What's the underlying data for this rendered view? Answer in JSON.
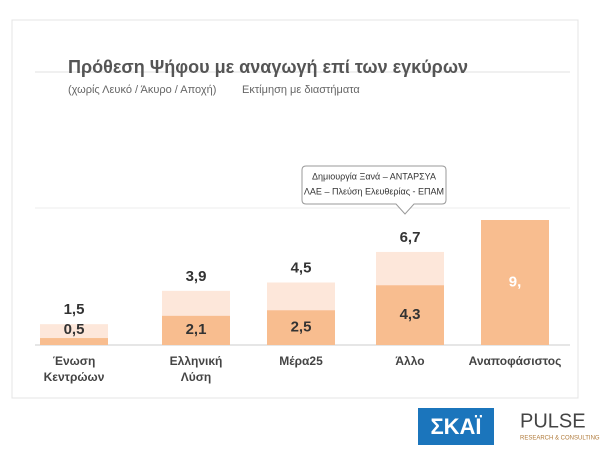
{
  "chart_data": {
    "type": "range-bar",
    "title": "Πρόθεση Ψήφου με αναγωγή επί των εγκύρων",
    "subtitle": "(χωρίς Λευκό / Άκυρο / Αποχή)",
    "note": "Εκτίμηση με διαστήματα",
    "annotation": [
      "Δημιουργία Ξανά – ΑΝΤΑΡΣΥΑ",
      "ΛΑΕ – Πλεύση Ελευθερίας - ΕΠΑΜ"
    ],
    "categories": [
      "Ένωση Κεντρώων",
      "Ελληνική Λύση",
      "Μέρα25",
      "Άλλο",
      "Αναποφάσιστος"
    ],
    "series": [
      {
        "color": "#f8bd8f",
        "values": [
          0.5,
          2.1,
          2.5,
          4.3,
          9
        ],
        "value_labels": [
          "0,5",
          "2,1",
          "2,5",
          "4,3",
          "9,"
        ]
      },
      {
        "color": "#fde7da",
        "values": [
          1.5,
          3.9,
          4.5,
          6.7,
          null
        ],
        "value_labels": [
          "1,5",
          "3,9",
          "4,5",
          "6,7",
          null
        ]
      }
    ]
  },
  "logos": {
    "skai": "ΣΚΑΪ",
    "pulse": "PULSE",
    "pulse_tagline": "RESEARCH & CONSULTING"
  }
}
